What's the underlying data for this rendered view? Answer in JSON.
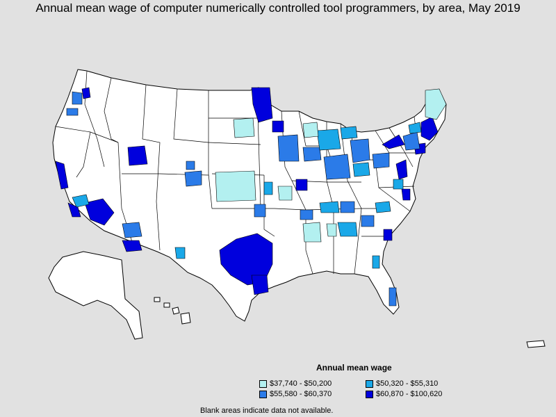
{
  "title": "Annual mean wage of computer numerically controlled tool programmers, by area, May 2019",
  "legend": {
    "title": "Annual mean wage",
    "items": [
      {
        "label": "$37,740 - $50,200",
        "color": "#b3f0f0"
      },
      {
        "label": "$50,320 - $55,310",
        "color": "#1aa8e8"
      },
      {
        "label": "$55,580 - $60,370",
        "color": "#2b7be8"
      },
      {
        "label": "$60,870 - $100,620",
        "color": "#0000dd"
      }
    ]
  },
  "footnote": "Blank areas indicate data not available.",
  "colors": {
    "background": "#e1e1e1",
    "land": "#ffffff",
    "outline": "#000000"
  }
}
